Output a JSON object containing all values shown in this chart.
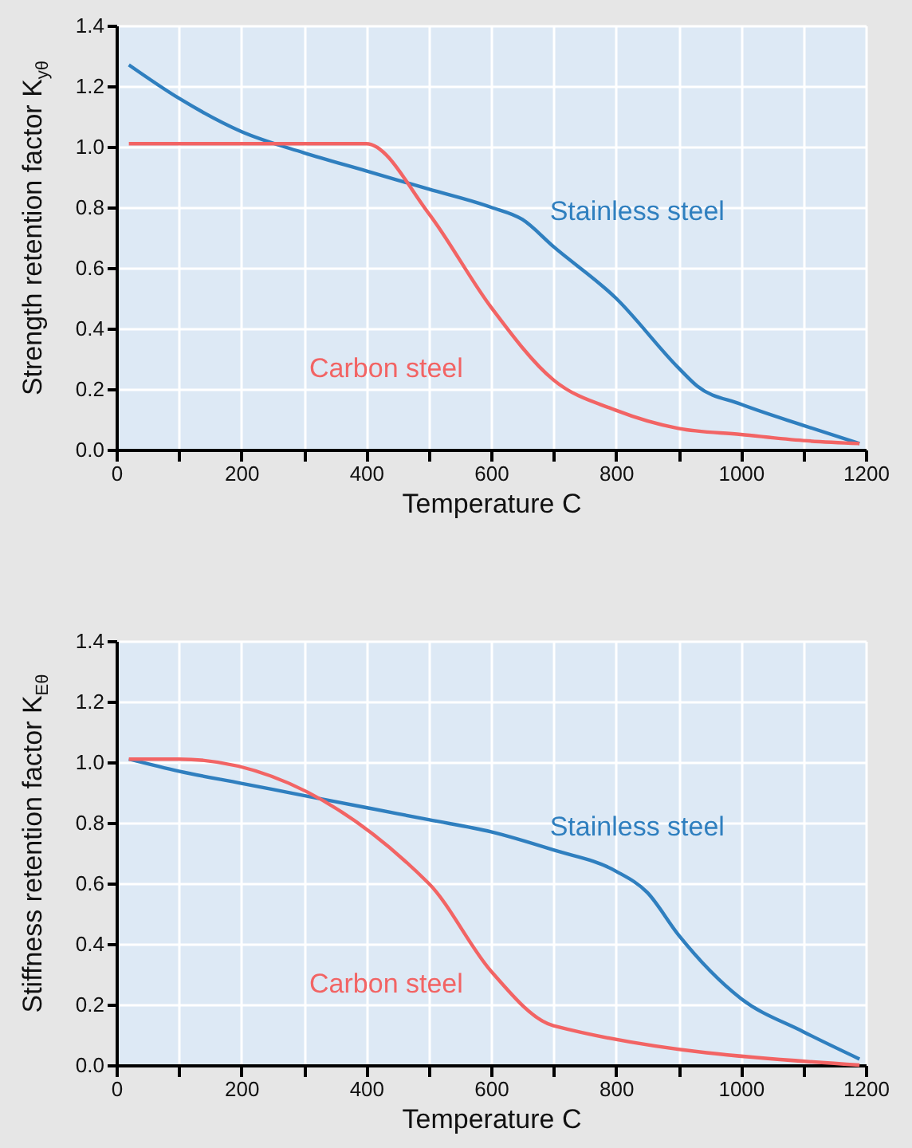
{
  "chart_data": [
    {
      "type": "line",
      "xlabel": "Temperature C",
      "ylabel": "Strength retention factor K$_{yθ}$",
      "xlim": [
        0,
        1200
      ],
      "ylim": [
        0,
        1.4
      ],
      "xticks": [
        0,
        {
          "value": 100,
          "label": null
        },
        200,
        {
          "value": 300,
          "label": null
        },
        400,
        {
          "value": 500,
          "label": null
        },
        600,
        {
          "value": 700,
          "label": null
        },
        800,
        {
          "value": 900,
          "label": null
        },
        1000,
        {
          "value": 1100,
          "label": null
        },
        1200
      ],
      "yticks": [
        {
          "value": 0,
          "label": "0.0"
        },
        {
          "value": 0.2,
          "label": "0.2"
        },
        {
          "value": 0.4,
          "label": "0.4"
        },
        {
          "value": 0.6,
          "label": "0.6"
        },
        {
          "value": 0.8,
          "label": "0.8"
        },
        {
          "value": 1,
          "label": "1.0"
        },
        {
          "value": 1.2,
          "label": "1.2"
        },
        {
          "value": 1.4,
          "label": "1.4"
        }
      ],
      "grid": true,
      "series": [
        {
          "name": "Stainless steel",
          "color": "#2f7fbf",
          "x": [
            20,
            100,
            200,
            300,
            400,
            500,
            600,
            650,
            700,
            800,
            900,
            930,
            1000,
            1100,
            1190
          ],
          "values": [
            1.27,
            1.16,
            1.05,
            0.98,
            0.92,
            0.86,
            0.8,
            0.76,
            0.67,
            0.5,
            0.27,
            0.21,
            0.15,
            0.08,
            0.02
          ]
        },
        {
          "name": "Carbon steel",
          "color": "#f26464",
          "x": [
            20,
            400,
            500,
            600,
            700,
            800,
            900,
            1000,
            1100,
            1190
          ],
          "values": [
            1.01,
            1.01,
            0.78,
            0.47,
            0.23,
            0.13,
            0.07,
            0.05,
            0.03,
            0.02
          ]
        }
      ]
    },
    {
      "type": "line",
      "xlabel": "Temperature C",
      "ylabel": "Stiffness retention factor  K$_{Eθ}$",
      "xlim": [
        0,
        1200
      ],
      "ylim": [
        0,
        1.4
      ],
      "xticks": [
        0,
        {
          "value": 100,
          "label": null
        },
        200,
        {
          "value": 300,
          "label": null
        },
        400,
        {
          "value": 500,
          "label": null
        },
        600,
        {
          "value": 700,
          "label": null
        },
        800,
        {
          "value": 900,
          "label": null
        },
        1000,
        {
          "value": 1100,
          "label": null
        },
        1200
      ],
      "yticks": [
        {
          "value": 0,
          "label": "0.0"
        },
        {
          "value": 0.2,
          "label": "0.2"
        },
        {
          "value": 0.4,
          "label": "0.4"
        },
        {
          "value": 0.6,
          "label": "0.6"
        },
        {
          "value": 0.8,
          "label": "0.8"
        },
        {
          "value": 1,
          "label": "1.0"
        },
        {
          "value": 1.2,
          "label": "1.2"
        },
        {
          "value": 1.4,
          "label": "1.4"
        }
      ],
      "grid": true,
      "series": [
        {
          "name": "Stainless steel",
          "color": "#2f7fbf",
          "x": [
            20,
            100,
            200,
            300,
            400,
            500,
            600,
            700,
            800,
            850,
            900,
            1000,
            1100,
            1190
          ],
          "values": [
            1.01,
            0.97,
            0.93,
            0.89,
            0.85,
            0.81,
            0.77,
            0.71,
            0.64,
            0.57,
            0.43,
            0.22,
            0.11,
            0.02
          ]
        },
        {
          "name": "Carbon steel",
          "color": "#f26464",
          "x": [
            20,
            100,
            500,
            600,
            700,
            1190
          ],
          "values": [
            1.01,
            1.01,
            0.6,
            0.31,
            0.13,
            0
          ]
        }
      ]
    }
  ]
}
